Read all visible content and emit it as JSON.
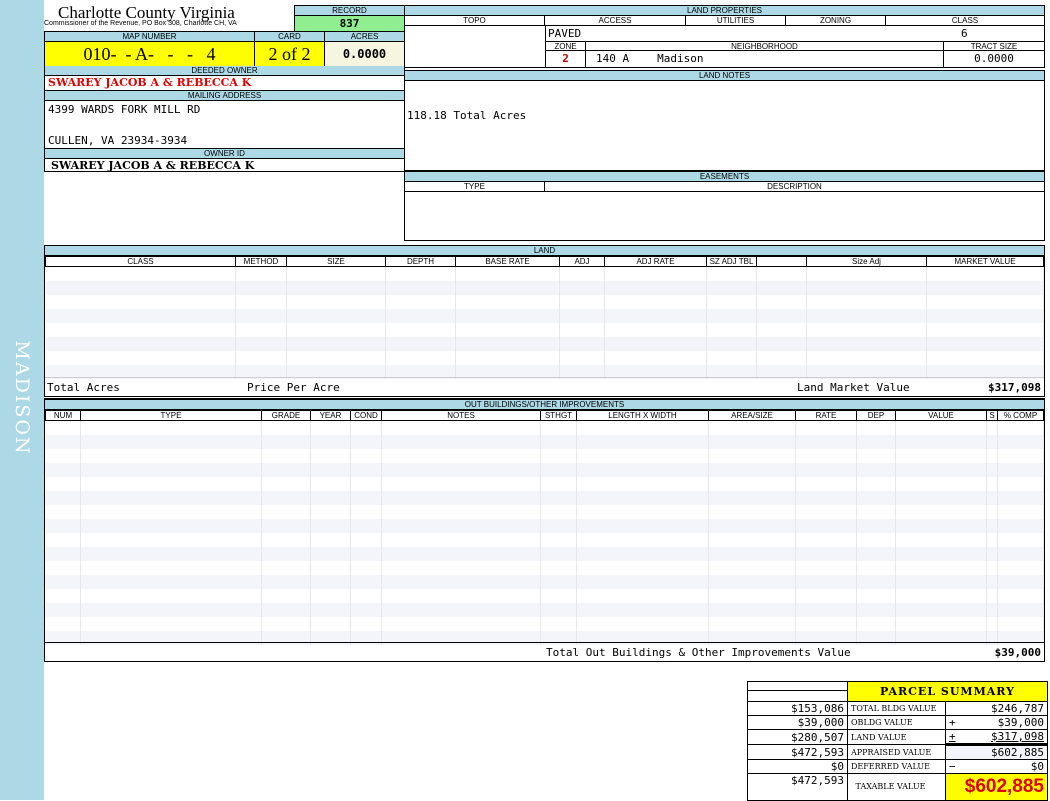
{
  "sidebar": {
    "label": "MADISON"
  },
  "header": {
    "title": "Charlotte County Virginia",
    "subtitle": "Commissioner of the Revenue, PO Box 308, Charlotte CH, VA",
    "record_label": "RECORD",
    "record": "837",
    "map_number_label": "MAP NUMBER",
    "map_number": "010-  - A-   -   -   4",
    "card_label": "CARD",
    "card": "2 of 2",
    "acres_label": "ACRES",
    "acres": "0.0000"
  },
  "owner": {
    "deeded_label": "DEEDED OWNER",
    "deeded": "SWAREY JACOB A & REBECCA K",
    "mailing_label": "MAILING ADDRESS",
    "address1": "4399 WARDS FORK MILL RD",
    "address2": "CULLEN, VA 23934-3934",
    "owner_id_label": "OWNER ID",
    "owner_id": "SWAREY JACOB A & REBECCA K"
  },
  "land_properties": {
    "title": "LAND PROPERTIES",
    "topo_label": "TOPO",
    "access_label": "ACCESS",
    "utilities_label": "UTILITIES",
    "zoning_label": "ZONING",
    "class_label": "CLASS",
    "access": "PAVED",
    "class": "6",
    "zone_label": "ZONE",
    "neighborhood_label": "NEIGHBORHOOD",
    "tract_size_label": "TRACT SIZE",
    "zone": "2",
    "neighborhood_code": "140 A",
    "neighborhood": "Madison",
    "tract_size": "0.0000"
  },
  "land_notes": {
    "title": "LAND NOTES",
    "text": "118.18 Total Acres"
  },
  "easements": {
    "title": "EASEMENTS",
    "type_label": "TYPE",
    "description_label": "DESCRIPTION"
  },
  "land": {
    "title": "LAND",
    "columns": [
      "CLASS",
      "METHOD",
      "SIZE",
      "DEPTH",
      "BASE RATE",
      "ADJ",
      "ADJ RATE",
      "SZ ADJ TBL",
      "",
      "Size Adj",
      "MARKET VALUE"
    ],
    "total_acres_label": "Total Acres",
    "price_per_acre_label": "Price Per Acre",
    "market_value_label": "Land Market Value",
    "market_value": "$317,098"
  },
  "outbuildings": {
    "title": "OUT BUILDINGS/OTHER IMPROVEMENTS",
    "columns": [
      "NUM",
      "TYPE",
      "GRADE",
      "YEAR",
      "COND",
      "NOTES",
      "STHGT",
      "LENGTH X WIDTH",
      "AREA/SIZE",
      "RATE",
      "DEP",
      "VALUE",
      "S",
      "% COMP"
    ],
    "total_label": "Total Out Buildings & Other Improvements Value",
    "total": "$39,000"
  },
  "summary": {
    "title": "PARCEL SUMMARY",
    "rows": [
      {
        "prior": "$153,086",
        "label": "TOTAL BLDG VALUE",
        "sign": "",
        "value": "$246,787"
      },
      {
        "prior": "$39,000",
        "label": "OBLDG VALUE",
        "sign": "+",
        "value": "$39,000"
      },
      {
        "prior": "$280,507",
        "label": "LAND VALUE",
        "sign": "+",
        "value": "$317,098"
      },
      {
        "prior": "$472,593",
        "label": "APPRAISED VALUE",
        "sign": "",
        "value": "$602,885"
      },
      {
        "prior": "$0",
        "label": "DEFERRED VALUE",
        "sign": "−",
        "value": "$0"
      }
    ],
    "taxable_prior": "$472,593",
    "taxable_label": "TAXABLE VALUE",
    "taxable": "$602,885"
  }
}
